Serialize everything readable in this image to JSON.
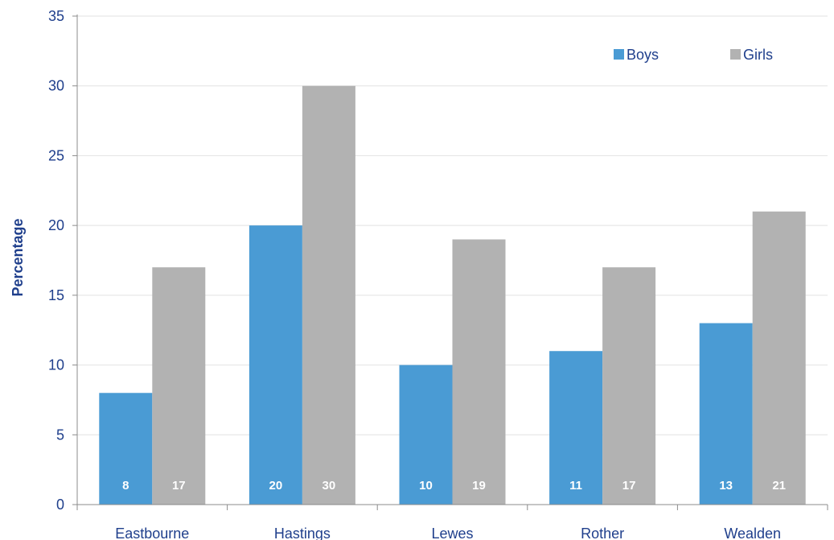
{
  "chart_data": {
    "type": "bar",
    "title": "",
    "xlabel": "",
    "ylabel": "Percentage",
    "ylim": [
      0,
      35
    ],
    "yticks": [
      0,
      5,
      10,
      15,
      20,
      25,
      30,
      35
    ],
    "grid": true,
    "legend_position": "top-right",
    "categories": [
      "Eastbourne",
      "Hastings",
      "Lewes",
      "Rother",
      "Wealden"
    ],
    "series": [
      {
        "name": "Boys",
        "color": "#4a9bd4",
        "values": [
          8,
          20,
          10,
          11,
          13
        ]
      },
      {
        "name": "Girls",
        "color": "#b2b2b2",
        "values": [
          17,
          30,
          19,
          17,
          21
        ]
      }
    ]
  }
}
